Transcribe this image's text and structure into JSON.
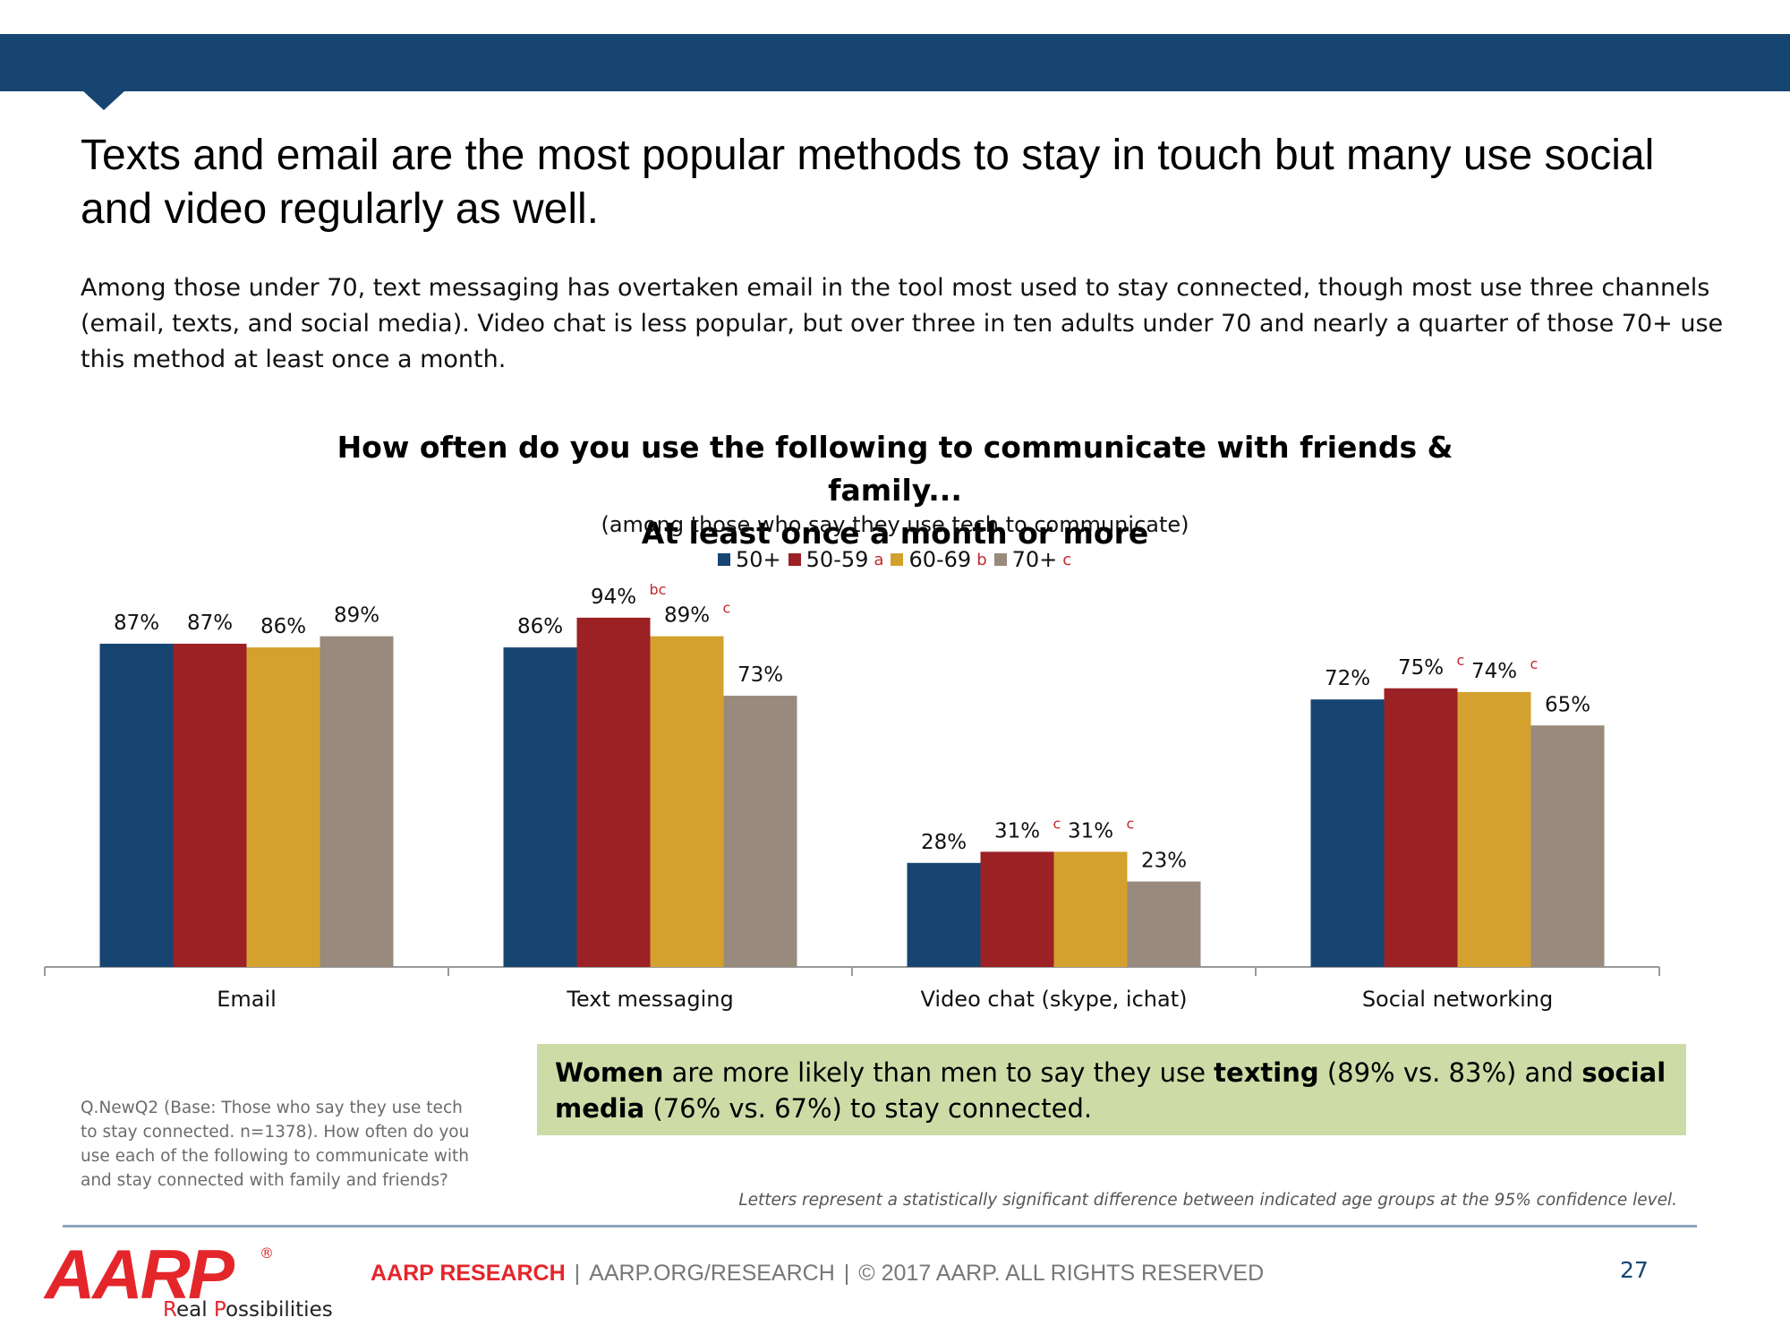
{
  "slide": {
    "headline": "Texts and email are the most popular methods to stay in touch but many use social and video regularly as well.",
    "intro": "Among those under 70, text messaging has overtaken email in the tool most used to stay connected, though most use three channels (email, texts, and social media). Video chat is less popular, but over three in ten adults under 70 and nearly a quarter of those 70+ use this method at least once a month.",
    "footnote": "Q.NewQ2 (Base: Those who say they use tech to stay connected. n=1378). How often do you use each of the following to communicate with and stay connected with family and friends?",
    "significance_note": "Letters represent a statistically significant difference between indicated age groups at the 95% confidence level.",
    "callout": {
      "b1": "Women",
      "t1": " are more likely than men to say they use ",
      "b2": "texting",
      "t2": " (89% vs. 83%) and ",
      "b3": "social media",
      "t3": " (76% vs. 67%) to stay connected."
    }
  },
  "footer": {
    "brand": "AARP RESEARCH",
    "url": "AARP.ORG/RESEARCH",
    "copyright": "© 2017 AARP. ALL RIGHTS RESERVED",
    "page_number": "27"
  },
  "logo": {
    "wordmark": "AARP",
    "registered": "®",
    "tagline_first": "R",
    "tagline_mid": "eal ",
    "tagline_p": "P",
    "tagline_rest": "ossibilities"
  },
  "chart_data": {
    "type": "bar",
    "title_line1": "How often do you use the following to communicate with friends & family...",
    "title_line2": "At least once a month or more",
    "subtitle": "(among those who say they use tech to communicate)",
    "categories": [
      "Email",
      "Text messaging",
      "Video chat (skype, ichat)",
      "Social networking"
    ],
    "ylim": [
      0,
      100
    ],
    "grid": false,
    "legend_position": "top-center",
    "series": [
      {
        "name": "50+",
        "sig_letter": "",
        "color": "#174572",
        "values": [
          87,
          86,
          28,
          72
        ],
        "labels": [
          "87%",
          "86%",
          "28%",
          "72%"
        ],
        "sig": [
          "",
          "",
          "",
          ""
        ]
      },
      {
        "name": "50-59",
        "sig_letter": "a",
        "color": "#9b2124",
        "values": [
          87,
          94,
          31,
          75
        ],
        "labels": [
          "87%",
          "94%",
          "31%",
          "75%"
        ],
        "sig": [
          "",
          "bc",
          "c",
          "c"
        ]
      },
      {
        "name": "60-69",
        "sig_letter": "b",
        "color": "#d4a12e",
        "values": [
          86,
          89,
          31,
          74
        ],
        "labels": [
          "86%",
          "89%",
          "31%",
          "74%"
        ],
        "sig": [
          "",
          "c",
          "c",
          "c"
        ]
      },
      {
        "name": "70+",
        "sig_letter": "c",
        "color": "#988a7d",
        "values": [
          89,
          73,
          23,
          65
        ],
        "labels": [
          "89%",
          "73%",
          "23%",
          "65%"
        ],
        "sig": [
          "",
          "",
          "",
          ""
        ]
      }
    ]
  }
}
